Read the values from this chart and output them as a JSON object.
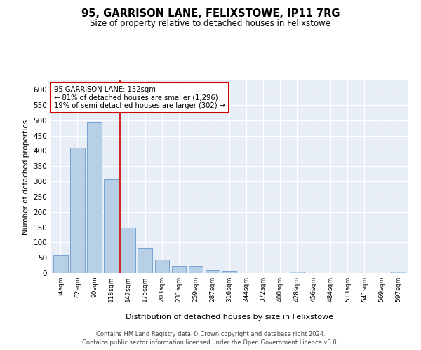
{
  "title": "95, GARRISON LANE, FELIXSTOWE, IP11 7RG",
  "subtitle": "Size of property relative to detached houses in Felixstowe",
  "xlabel": "Distribution of detached houses by size in Felixstowe",
  "ylabel": "Number of detached properties",
  "categories": [
    "34sqm",
    "62sqm",
    "90sqm",
    "118sqm",
    "147sqm",
    "175sqm",
    "203sqm",
    "231sqm",
    "259sqm",
    "287sqm",
    "316sqm",
    "344sqm",
    "372sqm",
    "400sqm",
    "428sqm",
    "456sqm",
    "484sqm",
    "513sqm",
    "541sqm",
    "569sqm",
    "597sqm"
  ],
  "values": [
    57,
    410,
    495,
    307,
    148,
    80,
    43,
    23,
    23,
    9,
    6,
    0,
    0,
    0,
    4,
    0,
    0,
    0,
    0,
    0,
    4
  ],
  "bar_color": "#b8cfe8",
  "bar_edge_color": "#6699cc",
  "marker_line_color": "#cc0000",
  "annotation_text": "95 GARRISON LANE: 152sqm\n← 81% of detached houses are smaller (1,296)\n19% of semi-detached houses are larger (302) →",
  "annotation_box_color": "#ffffff",
  "annotation_box_edge": "#cc0000",
  "ylim": [
    0,
    630
  ],
  "yticks": [
    0,
    50,
    100,
    150,
    200,
    250,
    300,
    350,
    400,
    450,
    500,
    550,
    600
  ],
  "footer_line1": "Contains HM Land Registry data © Crown copyright and database right 2024.",
  "footer_line2": "Contains public sector information licensed under the Open Government Licence v3.0.",
  "background_color": "#ffffff",
  "plot_bg_color": "#e8eef8"
}
